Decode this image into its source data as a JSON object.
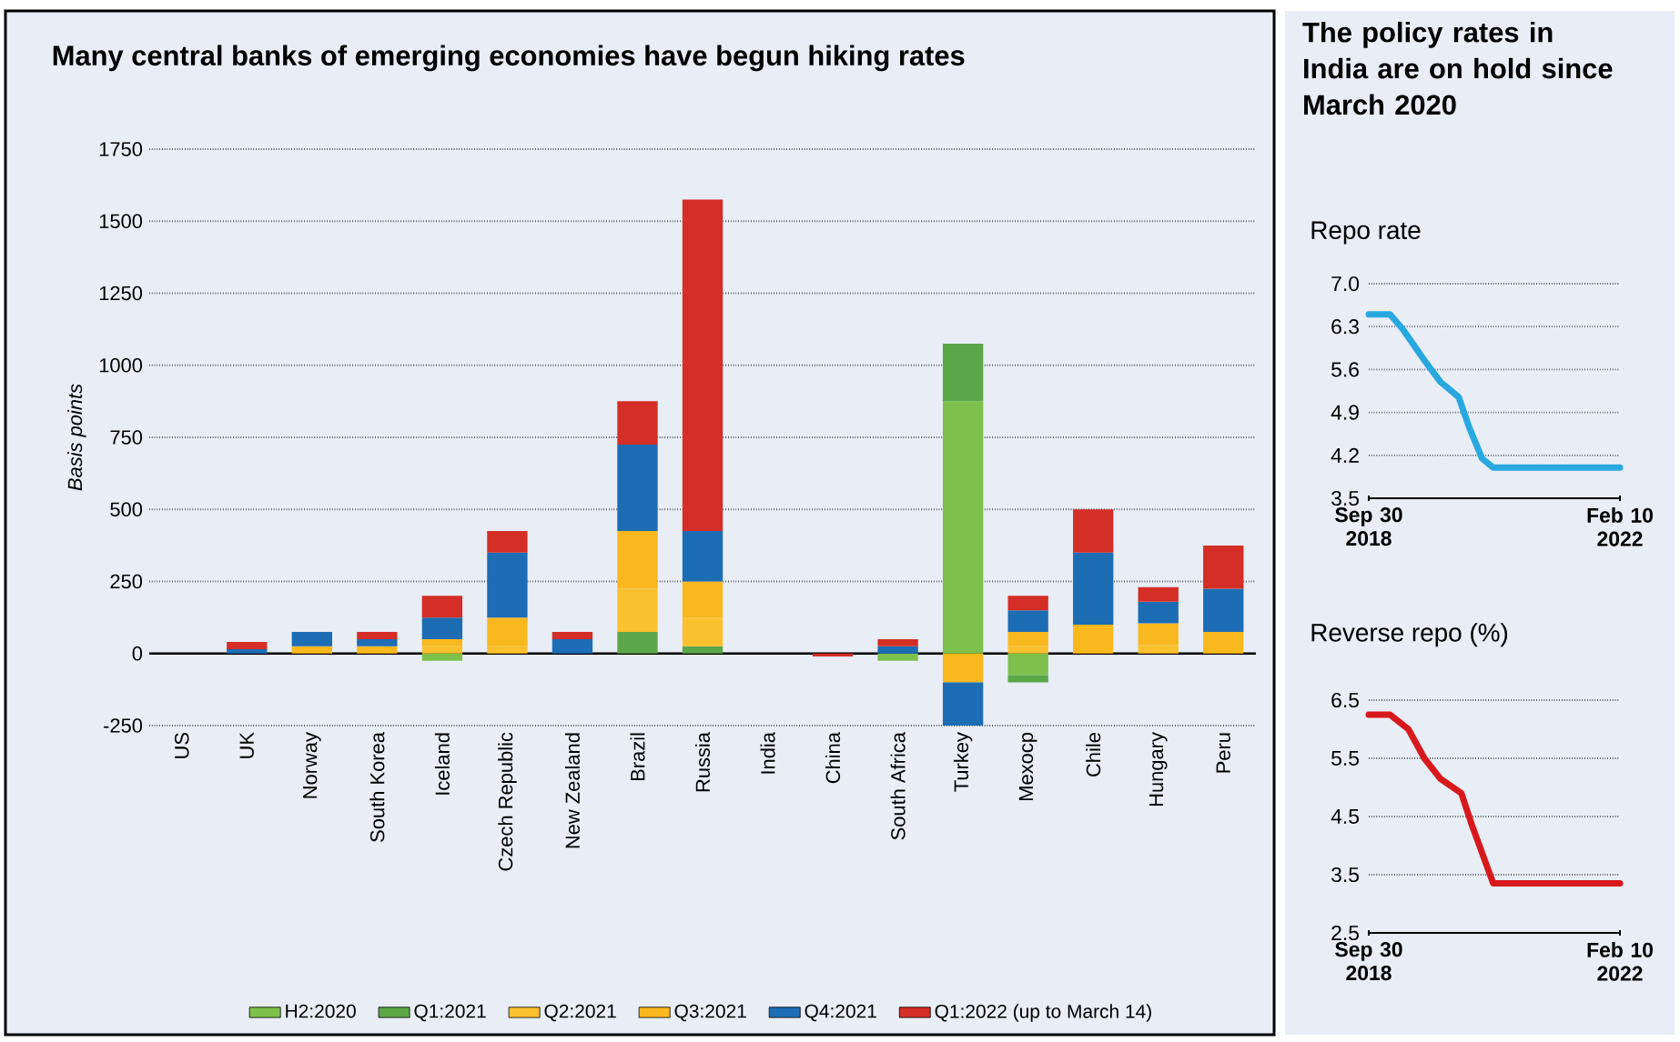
{
  "chart_data": [
    {
      "type": "bar",
      "title": "Many central banks of emerging economies have begun hiking rates",
      "ylabel": "Basis points",
      "categories": [
        "US",
        "UK",
        "Norway",
        "South Korea",
        "Iceland",
        "Czech Republic",
        "New Zealand",
        "Brazil",
        "Russia",
        "India",
        "China",
        "South Africa",
        "Turkey",
        "Mexocp",
        "Chile",
        "Hungary",
        "Peru"
      ],
      "stacked": true,
      "series": [
        {
          "name": "H2:2020",
          "color": "#7dc04b",
          "values": [
            0,
            0,
            0,
            0,
            -25,
            0,
            0,
            0,
            0,
            0,
            0,
            -25,
            875,
            -75,
            0,
            0,
            0
          ]
        },
        {
          "name": "Q1:2021",
          "color": "#5ba748",
          "values": [
            0,
            0,
            0,
            0,
            0,
            0,
            0,
            75,
            25,
            0,
            0,
            0,
            200,
            -25,
            0,
            0,
            0
          ]
        },
        {
          "name": "Q2:2021",
          "color": "#fbc02e",
          "values": [
            0,
            0,
            0,
            0,
            25,
            25,
            0,
            150,
            100,
            0,
            0,
            0,
            0,
            25,
            0,
            30,
            0
          ]
        },
        {
          "name": "Q3:2021",
          "color": "#f8b81e",
          "values": [
            0,
            0,
            25,
            25,
            25,
            100,
            0,
            200,
            125,
            0,
            0,
            0,
            -100,
            50,
            100,
            75,
            75
          ]
        },
        {
          "name": "Q4:2021",
          "color": "#1d6db5",
          "values": [
            0,
            15,
            50,
            25,
            75,
            225,
            50,
            300,
            175,
            0,
            0,
            25,
            -150,
            75,
            250,
            75,
            150
          ]
        },
        {
          "name": "Q1:2022 (up to March 14)",
          "color": "#d42e27",
          "values": [
            0,
            25,
            0,
            25,
            75,
            75,
            25,
            150,
            1150,
            0,
            -10,
            25,
            0,
            50,
            150,
            50,
            150
          ]
        }
      ],
      "ylim": [
        -250,
        1750
      ],
      "yticks": [
        -250,
        0,
        250,
        500,
        750,
        1000,
        1250,
        1500,
        1750
      ],
      "grid": "y",
      "legend": "bottom"
    },
    {
      "type": "line",
      "title": "The policy rates in India are on hold since March 2020",
      "subtitle": "Repo rate",
      "x": [
        "2018-09-30",
        "2019-01-12",
        "2019-03-17",
        "2019-06-29",
        "2019-09-15",
        "2019-12-14",
        "2020-02-04",
        "2020-04-06",
        "2020-05-31",
        "2022-02-10"
      ],
      "series": [
        {
          "color": "#29a8e0",
          "values": [
            6.5,
            6.5,
            6.25,
            5.75,
            5.4,
            5.15,
            4.65,
            4.15,
            4.0,
            4.0
          ]
        }
      ],
      "xlim": [
        "2018-09-30",
        "2022-02-10"
      ],
      "xticks": [
        {
          "value": "2018-09-30",
          "label": "Sep 30 2018"
        },
        {
          "value": "2022-02-10",
          "label": "Feb 10 2022"
        }
      ],
      "ylim": [
        3.5,
        7.0
      ],
      "yticks": [
        {
          "value": 3.5,
          "label": "3.5"
        },
        {
          "value": 4.2,
          "label": "4.2"
        },
        {
          "value": 4.9,
          "label": "4.9"
        },
        {
          "value": 5.6,
          "label": "5.6"
        },
        {
          "value": 6.3,
          "label": "6.3"
        },
        {
          "value": 7.0,
          "label": "7.0"
        }
      ],
      "grid": "y"
    },
    {
      "type": "line",
      "title": "Reverse repo (%)",
      "x": [
        "2018-09-30",
        "2019-01-12",
        "2019-04-12",
        "2019-06-29",
        "2019-09-15",
        "2019-12-27",
        "2020-02-17",
        "2020-05-31",
        "2022-02-10"
      ],
      "series": [
        {
          "color": "#d7191c",
          "values": [
            6.25,
            6.25,
            6.0,
            5.5,
            5.15,
            4.9,
            4.35,
            3.35,
            3.35
          ]
        }
      ],
      "xlim": [
        "2018-09-30",
        "2022-02-10"
      ],
      "xticks": [
        {
          "value": "2018-09-30",
          "label": "Sep 30 2018"
        },
        {
          "value": "2022-02-10",
          "label": "Feb 10 2022"
        }
      ],
      "ylim": [
        2.5,
        6.5
      ],
      "yticks": [
        {
          "value": 2.5,
          "label": "2.5"
        },
        {
          "value": 3.5,
          "label": "3.5"
        },
        {
          "value": 4.5,
          "label": "4.5"
        },
        {
          "value": 5.5,
          "label": "5.5"
        },
        {
          "value": 6.5,
          "label": "6.5"
        }
      ],
      "grid": "y"
    }
  ]
}
